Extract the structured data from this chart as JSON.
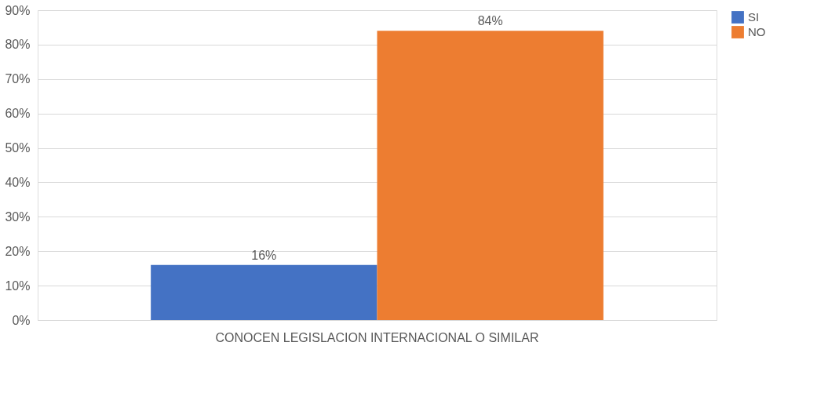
{
  "chart_data": {
    "type": "bar",
    "categories": [
      "CONOCEN LEGISLACION INTERNACIONAL O SIMILAR"
    ],
    "series": [
      {
        "name": "SI",
        "color": "#4472c4",
        "values": [
          16
        ],
        "value_labels": [
          "16%"
        ]
      },
      {
        "name": "NO",
        "color": "#ed7d31",
        "values": [
          84
        ],
        "value_labels": [
          "84%"
        ]
      }
    ],
    "ylim": [
      0,
      90
    ],
    "yticks": [
      {
        "value": 0,
        "label": "0%"
      },
      {
        "value": 10,
        "label": "10%"
      },
      {
        "value": 20,
        "label": "20%"
      },
      {
        "value": 30,
        "label": "30%"
      },
      {
        "value": 40,
        "label": "40%"
      },
      {
        "value": 50,
        "label": "50%"
      },
      {
        "value": 60,
        "label": "60%"
      },
      {
        "value": 70,
        "label": "70%"
      },
      {
        "value": 80,
        "label": "80%"
      },
      {
        "value": 90,
        "label": "90%"
      }
    ],
    "grid": "y",
    "legend": "right"
  }
}
